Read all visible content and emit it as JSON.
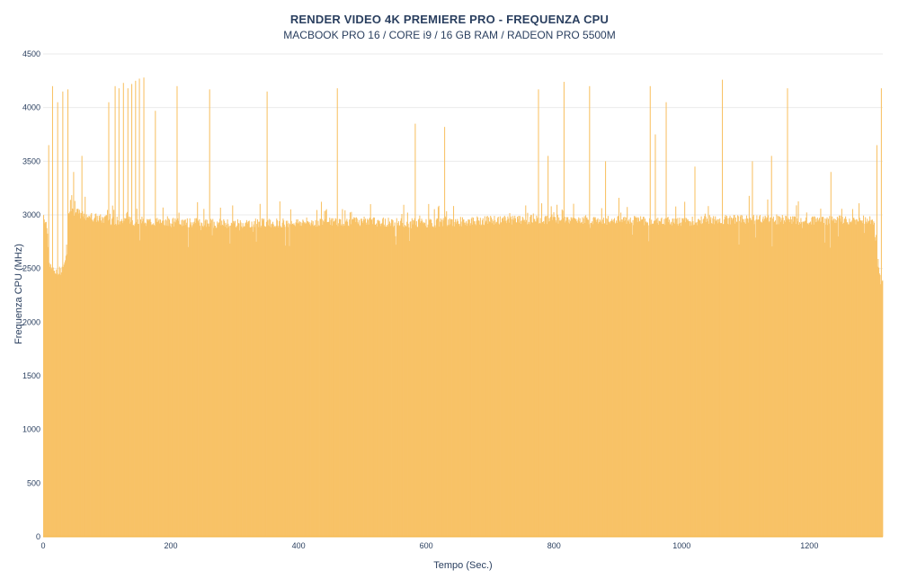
{
  "chart_data": {
    "type": "bar",
    "title": "RENDER VIDEO 4K PREMIERE PRO - FREQUENZA CPU",
    "subtitle": "MACBOOK PRO 16 / CORE i9 / 16 GB RAM / RADEON PRO 5500M",
    "xlabel": "Tempo (Sec.)",
    "ylabel": "Frequenza CPU (MHz)",
    "xlim": [
      0,
      1315
    ],
    "ylim": [
      0,
      4500
    ],
    "x_ticks": [
      0,
      200,
      400,
      600,
      800,
      1000,
      1200
    ],
    "y_ticks": [
      0,
      500,
      1000,
      1500,
      2000,
      2500,
      3000,
      3500,
      4000,
      4500
    ],
    "grid": true,
    "bar_color": "#f8c266",
    "series": [
      {
        "baseline_profile": [
          [
            0,
            3000
          ],
          [
            5,
            2900
          ],
          [
            10,
            2500
          ],
          [
            20,
            2450
          ],
          [
            30,
            2500
          ],
          [
            35,
            2600
          ],
          [
            40,
            3050
          ],
          [
            60,
            3000
          ],
          [
            100,
            2950
          ],
          [
            200,
            2930
          ],
          [
            300,
            2920
          ],
          [
            400,
            2930
          ],
          [
            500,
            2940
          ],
          [
            600,
            2920
          ],
          [
            700,
            2950
          ],
          [
            800,
            2960
          ],
          [
            900,
            2950
          ],
          [
            1000,
            2940
          ],
          [
            1100,
            2960
          ],
          [
            1200,
            2950
          ],
          [
            1300,
            2950
          ],
          [
            1305,
            2600
          ],
          [
            1310,
            2400
          ],
          [
            1315,
            2350
          ]
        ],
        "spikes": [
          [
            8,
            3650
          ],
          [
            14,
            4200
          ],
          [
            22,
            4050
          ],
          [
            30,
            4150
          ],
          [
            38,
            4170
          ],
          [
            47,
            3400
          ],
          [
            60,
            3550
          ],
          [
            102,
            4050
          ],
          [
            112,
            4200
          ],
          [
            118,
            4180
          ],
          [
            125,
            4230
          ],
          [
            132,
            4180
          ],
          [
            138,
            4220
          ],
          [
            144,
            4250
          ],
          [
            150,
            4270
          ],
          [
            157,
            4280
          ],
          [
            175,
            3970
          ],
          [
            209,
            4200
          ],
          [
            260,
            4170
          ],
          [
            350,
            4150
          ],
          [
            460,
            4180
          ],
          [
            582,
            3850
          ],
          [
            628,
            3820
          ],
          [
            775,
            4170
          ],
          [
            790,
            3550
          ],
          [
            815,
            4240
          ],
          [
            855,
            4200
          ],
          [
            880,
            3500
          ],
          [
            950,
            4200
          ],
          [
            958,
            3750
          ],
          [
            975,
            4050
          ],
          [
            1020,
            3450
          ],
          [
            1063,
            4260
          ],
          [
            1110,
            3500
          ],
          [
            1140,
            3550
          ],
          [
            1165,
            4180
          ],
          [
            1233,
            3400
          ],
          [
            1305,
            3650
          ],
          [
            1312,
            4180
          ]
        ]
      }
    ]
  }
}
